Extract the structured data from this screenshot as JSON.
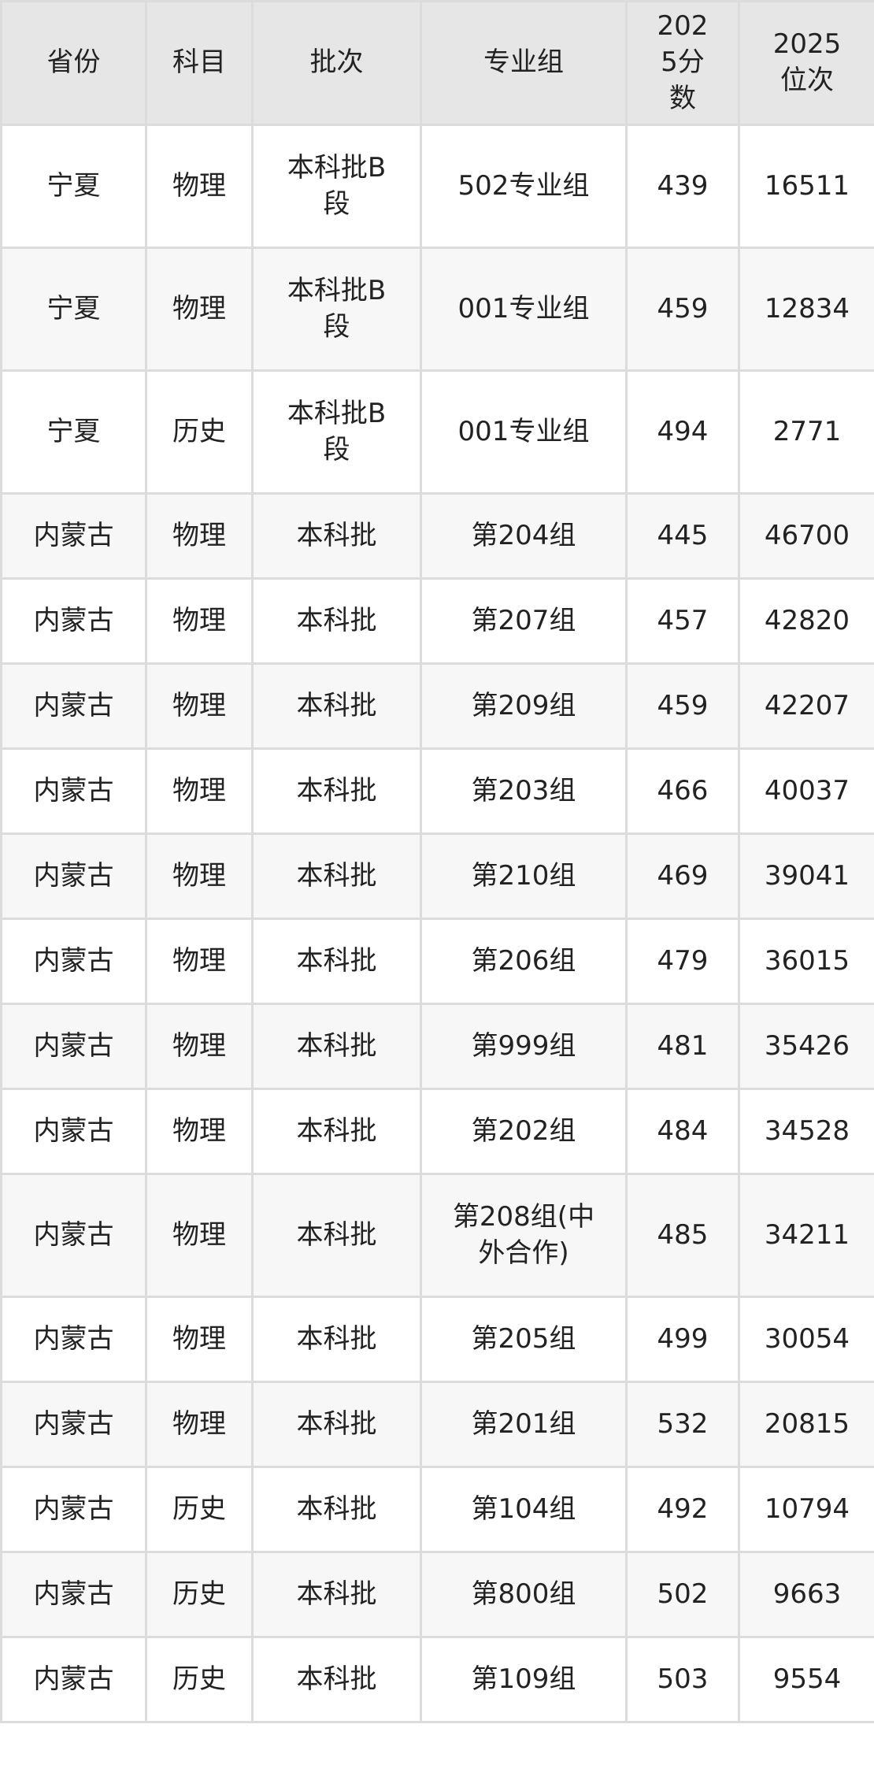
{
  "headers": [
    "省份",
    "科目",
    "批次",
    "专业组",
    "2025分数",
    "2025位次"
  ],
  "rows": [
    [
      "宁夏",
      "物理",
      "本科批B段",
      "502专业组",
      "439",
      "16511"
    ],
    [
      "宁夏",
      "物理",
      "本科批B段",
      "001专业组",
      "459",
      "12834"
    ],
    [
      "宁夏",
      "历史",
      "本科批B段",
      "001专业组",
      "494",
      "2771"
    ],
    [
      "内蒙古",
      "物理",
      "本科批",
      "第204组",
      "445",
      "46700"
    ],
    [
      "内蒙古",
      "物理",
      "本科批",
      "第207组",
      "457",
      "42820"
    ],
    [
      "内蒙古",
      "物理",
      "本科批",
      "第209组",
      "459",
      "42207"
    ],
    [
      "内蒙古",
      "物理",
      "本科批",
      "第203组",
      "466",
      "40037"
    ],
    [
      "内蒙古",
      "物理",
      "本科批",
      "第210组",
      "469",
      "39041"
    ],
    [
      "内蒙古",
      "物理",
      "本科批",
      "第206组",
      "479",
      "36015"
    ],
    [
      "内蒙古",
      "物理",
      "本科批",
      "第999组",
      "481",
      "35426"
    ],
    [
      "内蒙古",
      "物理",
      "本科批",
      "第202组",
      "484",
      "34528"
    ],
    [
      "内蒙古",
      "物理",
      "本科批",
      "第208组(中外合作)",
      "485",
      "34211"
    ],
    [
      "内蒙古",
      "物理",
      "本科批",
      "第205组",
      "499",
      "30054"
    ],
    [
      "内蒙古",
      "物理",
      "本科批",
      "第201组",
      "532",
      "20815"
    ],
    [
      "内蒙古",
      "历史",
      "本科批",
      "第104组",
      "492",
      "10794"
    ],
    [
      "内蒙古",
      "历史",
      "本科批",
      "第800组",
      "502",
      "9663"
    ],
    [
      "内蒙古",
      "历史",
      "本科批",
      "第109组",
      "503",
      "9554"
    ]
  ]
}
